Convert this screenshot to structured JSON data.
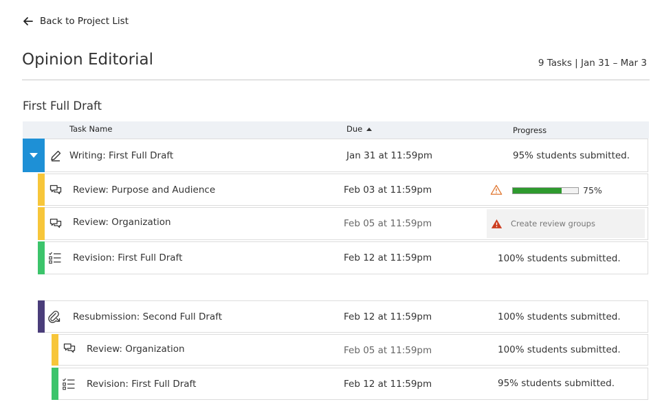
{
  "nav": {
    "back_label": "Back to Project List"
  },
  "header": {
    "title": "Opinion Editorial",
    "summary": "9 Tasks | Jan 31 – Mar 3"
  },
  "section": {
    "title": "First Full Draft"
  },
  "table": {
    "col_name": "Task Name",
    "col_due": "Due",
    "col_progress": "Progress"
  },
  "rows": [
    {
      "name": "Writing: First Full Draft",
      "due": "Jan 31 at 11:59pm",
      "progress_text": "95% students submitted."
    },
    {
      "name": "Review: Purpose and Audience",
      "due": "Feb 03 at 11:59pm",
      "progress_percent": 75,
      "progress_label": "75%"
    },
    {
      "name": "Review: Organization",
      "due": "Feb 05 at 11:59pm",
      "action_label": "Create review groups"
    },
    {
      "name": "Revision: First Full Draft",
      "due": "Feb 12 at 11:59pm",
      "progress_text": "100% students submitted."
    },
    {
      "name": "Resubmission: Second Full Draft",
      "due": "Feb 12 at 11:59pm",
      "progress_text": "100% students submitted."
    },
    {
      "name": "Review: Organization",
      "due": "Feb 05 at 11:59pm",
      "progress_text": "100% students submitted."
    },
    {
      "name": "Revision: First Full Draft",
      "due": "Feb 12 at 11:59pm",
      "progress_text": "95% students submitted."
    }
  ],
  "colors": {
    "accent_blue": "#1e90d6",
    "review_yellow": "#f7c63a",
    "revision_green": "#3cc46b",
    "resubmission_purple": "#4a3d7a",
    "warning_orange": "#e0752e",
    "warning_red": "#cc3d1f",
    "progress_green": "#2e9a2e"
  }
}
